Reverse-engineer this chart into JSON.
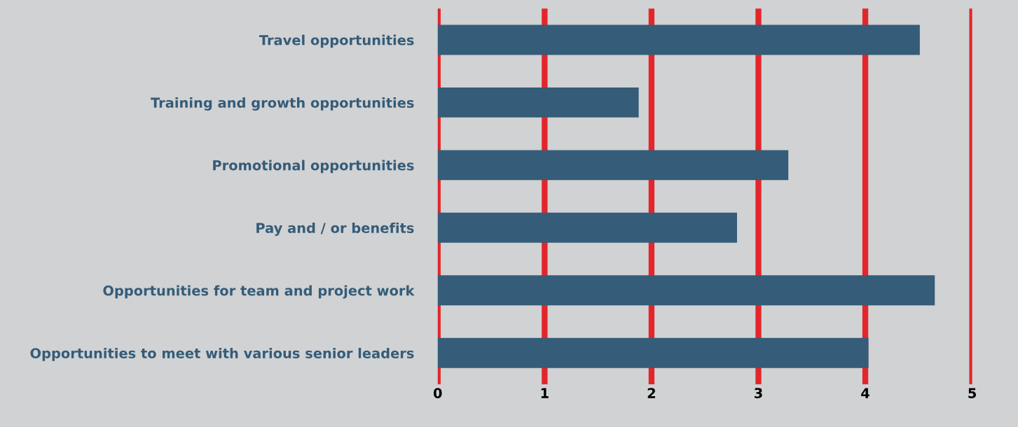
{
  "chart_data": {
    "type": "bar",
    "orientation": "horizontal",
    "categories": [
      "Travel opportunities",
      "Training and growth opportunities",
      "Promotional opportunities",
      "Pay and / or benefits",
      "Opportunities for team and project work",
      "Opportunities to meet with various senior leaders"
    ],
    "values": [
      4.51,
      1.88,
      3.28,
      2.8,
      4.65,
      4.03
    ],
    "color": "#355c78",
    "xlim": [
      0,
      5
    ],
    "xticks": [
      0,
      1,
      2,
      3,
      4,
      5
    ],
    "grid": "x"
  }
}
